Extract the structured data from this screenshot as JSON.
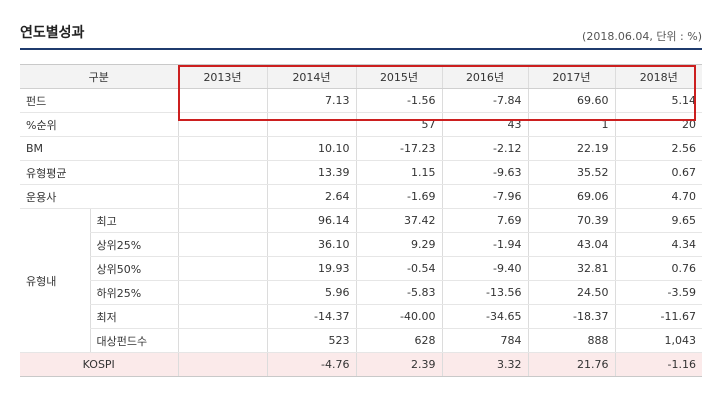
{
  "title": "연도별성과",
  "meta_note": "(2018.06.04, 단위 : %)",
  "header": {
    "label": "구분",
    "years": [
      "2013년",
      "2014년",
      "2015년",
      "2016년",
      "2017년",
      "2018년"
    ]
  },
  "rows": {
    "fund": {
      "label": "펀드",
      "values": [
        "",
        "7.13",
        "-1.56",
        "-7.84",
        "69.60",
        "5.14"
      ]
    },
    "rank": {
      "label": "%순위",
      "values": [
        "",
        "",
        "57",
        "43",
        "1",
        "20"
      ]
    },
    "bm": {
      "label": "BM",
      "values": [
        "",
        "10.10",
        "-17.23",
        "-2.12",
        "22.19",
        "2.56"
      ]
    },
    "type_avg": {
      "label": "유형평균",
      "values": [
        "",
        "13.39",
        "1.15",
        "-9.63",
        "35.52",
        "0.67"
      ]
    },
    "manager": {
      "label": "운용사",
      "values": [
        "",
        "2.64",
        "-1.69",
        "-7.96",
        "69.06",
        "4.70"
      ]
    }
  },
  "type_group": {
    "label": "유형내",
    "rows": {
      "max": {
        "label": "최고",
        "values": [
          "",
          "96.14",
          "37.42",
          "7.69",
          "70.39",
          "9.65"
        ]
      },
      "top25": {
        "label": "상위25%",
        "values": [
          "",
          "36.10",
          "9.29",
          "-1.94",
          "43.04",
          "4.34"
        ]
      },
      "top50": {
        "label": "상위50%",
        "values": [
          "",
          "19.93",
          "-0.54",
          "-9.40",
          "32.81",
          "0.76"
        ]
      },
      "bottom25": {
        "label": "하위25%",
        "values": [
          "",
          "5.96",
          "-5.83",
          "-13.56",
          "24.50",
          "-3.59"
        ]
      },
      "min": {
        "label": "최저",
        "values": [
          "",
          "-14.37",
          "-40.00",
          "-34.65",
          "-18.37",
          "-11.67"
        ]
      },
      "count": {
        "label": "대상펀드수",
        "values": [
          "",
          "523",
          "628",
          "784",
          "888",
          "1,043"
        ]
      }
    }
  },
  "kospi": {
    "label": "KOSPI",
    "values": [
      "",
      "-4.76",
      "2.39",
      "3.32",
      "21.76",
      "-1.16"
    ]
  },
  "highlight_color": "#cc1f1f"
}
